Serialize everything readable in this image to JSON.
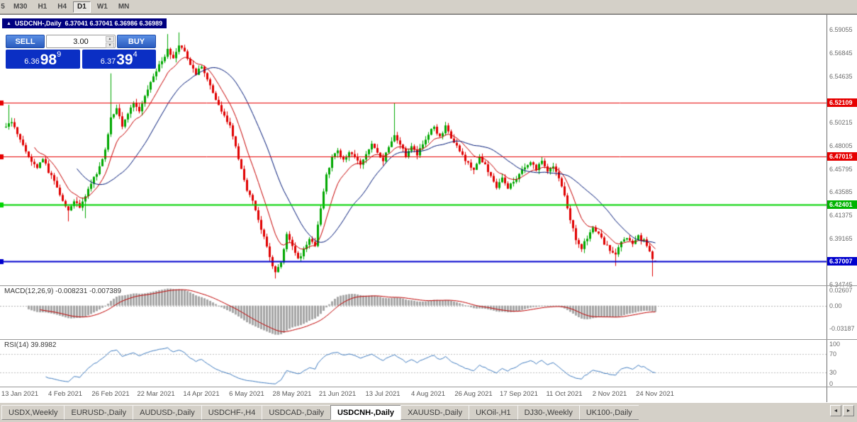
{
  "icons": {
    "chart_direction_icon": "▲",
    "spinner_up_icon": "▲",
    "spinner_down_icon": "▼",
    "tabs_left_icon": "◄",
    "tabs_right_icon": "►"
  },
  "toolbar": {
    "buttons": [
      {
        "label": "5",
        "active": false,
        "partial": true
      },
      {
        "label": "M30",
        "active": false,
        "partial": false
      },
      {
        "label": "H1",
        "active": false,
        "partial": false
      },
      {
        "label": "H4",
        "active": false,
        "partial": false
      },
      {
        "label": "D1",
        "active": true,
        "partial": false
      },
      {
        "label": "W1",
        "active": false,
        "partial": false
      },
      {
        "label": "MN",
        "active": false,
        "partial": false
      }
    ]
  },
  "chart": {
    "title_symbol": "USDCNH-,Daily",
    "title_ohlc": "6.37041 6.37041 6.36986 6.36989"
  },
  "one_click": {
    "sell_label": "SELL",
    "buy_label": "BUY",
    "lot_size": "3.00",
    "sell_price": {
      "prefix": "6.36",
      "big": "98",
      "pip": "9"
    },
    "buy_price": {
      "prefix": "6.37",
      "big": "39",
      "pip": "4"
    }
  },
  "price_axis": {
    "ticks": [
      {
        "text": "6.59055",
        "value": 6.59055
      },
      {
        "text": "6.56845",
        "value": 6.56845
      },
      {
        "text": "6.54635",
        "value": 6.54635
      },
      {
        "text": "6.50215",
        "value": 6.50215
      },
      {
        "text": "6.48005",
        "value": 6.48005
      },
      {
        "text": "6.45795",
        "value": 6.45795
      },
      {
        "text": "6.43585",
        "value": 6.43585
      },
      {
        "text": "6.41375",
        "value": 6.41375
      },
      {
        "text": "6.39165",
        "value": 6.39165
      },
      {
        "text": "6.34745",
        "value": 6.34745
      }
    ],
    "badges": [
      {
        "text": "6.52109",
        "value": 6.52109,
        "color": "#e60000"
      },
      {
        "text": "6.47015",
        "value": 6.47015,
        "color": "#e60000"
      },
      {
        "text": "6.42401",
        "value": 6.42401,
        "color": "#00b400"
      },
      {
        "text": "6.37007",
        "value": 6.37007,
        "color": "#0000cd"
      }
    ]
  },
  "macd": {
    "label": "MACD(12,26,9) -0.008231 -0.007389",
    "axis": [
      {
        "text": "0.02607",
        "value": 0.02607
      },
      {
        "text": "0.00",
        "value": 0
      },
      {
        "text": "-0.03187",
        "value": -0.03187
      }
    ]
  },
  "rsi": {
    "label": "RSI(14) 39.8982",
    "axis": [
      {
        "text": "100",
        "value": 100
      },
      {
        "text": "70",
        "value": 70
      },
      {
        "text": "30",
        "value": 30
      },
      {
        "text": "0",
        "value": 0
      }
    ]
  },
  "tabs": {
    "items": [
      {
        "label": "USDX,Weekly",
        "active": false
      },
      {
        "label": "EURUSD-,Daily",
        "active": false
      },
      {
        "label": "AUDUSD-,Daily",
        "active": false
      },
      {
        "label": "USDCHF-,H4",
        "active": false
      },
      {
        "label": "USDCAD-,Daily",
        "active": false
      },
      {
        "label": "USDCNH-,Daily",
        "active": true
      },
      {
        "label": "XAUUSD-,Daily",
        "active": false
      },
      {
        "label": "UKOil-,H1",
        "active": false
      },
      {
        "label": "DJ30-,Weekly",
        "active": false
      },
      {
        "label": "UK100-,Daily",
        "active": false
      }
    ]
  },
  "chart_data": {
    "type": "candlestick",
    "symbol": "USDCNH-",
    "period": "Daily",
    "bars": 230,
    "current_bar": {
      "open": 6.37041,
      "high": 6.37041,
      "low": 6.36986,
      "close": 6.36989
    },
    "y_range": {
      "top": 6.596,
      "bottom": 6.347
    },
    "candle_up_color": "#00a800",
    "candle_down_color": "#e00000",
    "price_path": [
      [
        0,
        6.498
      ],
      [
        2,
        6.504
      ],
      [
        5,
        6.486
      ],
      [
        8,
        6.468
      ],
      [
        11,
        6.458
      ],
      [
        13,
        6.468
      ],
      [
        15,
        6.455
      ],
      [
        17,
        6.446
      ],
      [
        19,
        6.433
      ],
      [
        22,
        6.418
      ],
      [
        24,
        6.428
      ],
      [
        26,
        6.421
      ],
      [
        28,
        6.433
      ],
      [
        30,
        6.445
      ],
      [
        33,
        6.459
      ],
      [
        35,
        6.477
      ],
      [
        37,
        6.506
      ],
      [
        39,
        6.516
      ],
      [
        41,
        6.499
      ],
      [
        43,
        6.511
      ],
      [
        45,
        6.521
      ],
      [
        47,
        6.513
      ],
      [
        49,
        6.528
      ],
      [
        51,
        6.541
      ],
      [
        53,
        6.551
      ],
      [
        55,
        6.561
      ],
      [
        57,
        6.571
      ],
      [
        59,
        6.564
      ],
      [
        61,
        6.575
      ],
      [
        63,
        6.569
      ],
      [
        65,
        6.558
      ],
      [
        67,
        6.549
      ],
      [
        69,
        6.556
      ],
      [
        71,
        6.543
      ],
      [
        73,
        6.531
      ],
      [
        75,
        6.519
      ],
      [
        77,
        6.509
      ],
      [
        79,
        6.499
      ],
      [
        81,
        6.479
      ],
      [
        83,
        6.459
      ],
      [
        85,
        6.439
      ],
      [
        87,
        6.426
      ],
      [
        89,
        6.409
      ],
      [
        91,
        6.393
      ],
      [
        93,
        6.374
      ],
      [
        95,
        6.359
      ],
      [
        97,
        6.369
      ],
      [
        99,
        6.397
      ],
      [
        101,
        6.383
      ],
      [
        103,
        6.371
      ],
      [
        105,
        6.381
      ],
      [
        107,
        6.391
      ],
      [
        109,
        6.386
      ],
      [
        111,
        6.421
      ],
      [
        113,
        6.451
      ],
      [
        115,
        6.469
      ],
      [
        117,
        6.477
      ],
      [
        119,
        6.466
      ],
      [
        121,
        6.475
      ],
      [
        123,
        6.468
      ],
      [
        125,
        6.462
      ],
      [
        127,
        6.473
      ],
      [
        129,
        6.481
      ],
      [
        131,
        6.473
      ],
      [
        133,
        6.466
      ],
      [
        135,
        6.479
      ],
      [
        137,
        6.491
      ],
      [
        139,
        6.481
      ],
      [
        141,
        6.471
      ],
      [
        143,
        6.479
      ],
      [
        145,
        6.471
      ],
      [
        147,
        6.481
      ],
      [
        149,
        6.492
      ],
      [
        151,
        6.497
      ],
      [
        153,
        6.489
      ],
      [
        155,
        6.498
      ],
      [
        157,
        6.487
      ],
      [
        159,
        6.479
      ],
      [
        161,
        6.471
      ],
      [
        163,
        6.463
      ],
      [
        165,
        6.456
      ],
      [
        167,
        6.469
      ],
      [
        169,
        6.461
      ],
      [
        171,
        6.451
      ],
      [
        173,
        6.441
      ],
      [
        175,
        6.449
      ],
      [
        177,
        6.439
      ],
      [
        179,
        6.447
      ],
      [
        181,
        6.453
      ],
      [
        183,
        6.459
      ],
      [
        185,
        6.464
      ],
      [
        187,
        6.458
      ],
      [
        189,
        6.465
      ],
      [
        191,
        6.457
      ],
      [
        193,
        6.461
      ],
      [
        195,
        6.449
      ],
      [
        197,
        6.431
      ],
      [
        199,
        6.409
      ],
      [
        201,
        6.391
      ],
      [
        203,
        6.383
      ],
      [
        205,
        6.393
      ],
      [
        207,
        6.403
      ],
      [
        209,
        6.396
      ],
      [
        211,
        6.387
      ],
      [
        213,
        6.381
      ],
      [
        215,
        6.377
      ],
      [
        217,
        6.389
      ],
      [
        219,
        6.393
      ],
      [
        221,
        6.387
      ],
      [
        223,
        6.393
      ],
      [
        225,
        6.389
      ],
      [
        227,
        6.381
      ],
      [
        228,
        6.373
      ],
      [
        229,
        6.36989
      ]
    ],
    "wick_events": [
      {
        "d": 1,
        "high": 6.519
      },
      {
        "d": 22,
        "low": 6.408
      },
      {
        "d": 28,
        "low": 6.411
      },
      {
        "d": 37,
        "high": 6.549
      },
      {
        "d": 57,
        "high": 6.5865
      },
      {
        "d": 61,
        "high": 6.588
      },
      {
        "d": 95,
        "low": 6.3535
      },
      {
        "d": 137,
        "high": 6.5205
      },
      {
        "d": 215,
        "low": 6.3655
      },
      {
        "d": 228,
        "low": 6.3555
      }
    ],
    "levels": [
      {
        "value": 6.52109,
        "color": "#e60000",
        "width": 1
      },
      {
        "value": 6.47015,
        "color": "#e60000",
        "width": 1
      },
      {
        "value": 6.42401,
        "color": "#00d400",
        "width": 2
      },
      {
        "value": 6.37007,
        "color": "#0000cd",
        "width": 2
      }
    ],
    "moving_averages": [
      {
        "type": "ema",
        "period": 10,
        "color": "#c80000"
      },
      {
        "type": "sma",
        "period": 25,
        "color": "#001878"
      }
    ],
    "indicators": [
      {
        "name": "MACD",
        "params": "12,26,9",
        "value1": -0.008231,
        "value2": -0.007389,
        "histogram_color": "#a6a6a6",
        "signal_color": "#c00000"
      },
      {
        "name": "RSI",
        "params": "14",
        "value": 39.8982,
        "line_color": "#3e7bc0",
        "levels": [
          70,
          30
        ]
      }
    ],
    "x_labels": [
      "13 Jan 2021",
      "4 Feb 2021",
      "26 Feb 2021",
      "22 Mar 2021",
      "14 Apr 2021",
      "6 May 2021",
      "28 May 2021",
      "21 Jun 2021",
      "13 Jul 2021",
      "4 Aug 2021",
      "26 Aug 2021",
      "17 Sep 2021",
      "11 Oct 2021",
      "2 Nov 2021",
      "24 Nov 2021"
    ]
  }
}
